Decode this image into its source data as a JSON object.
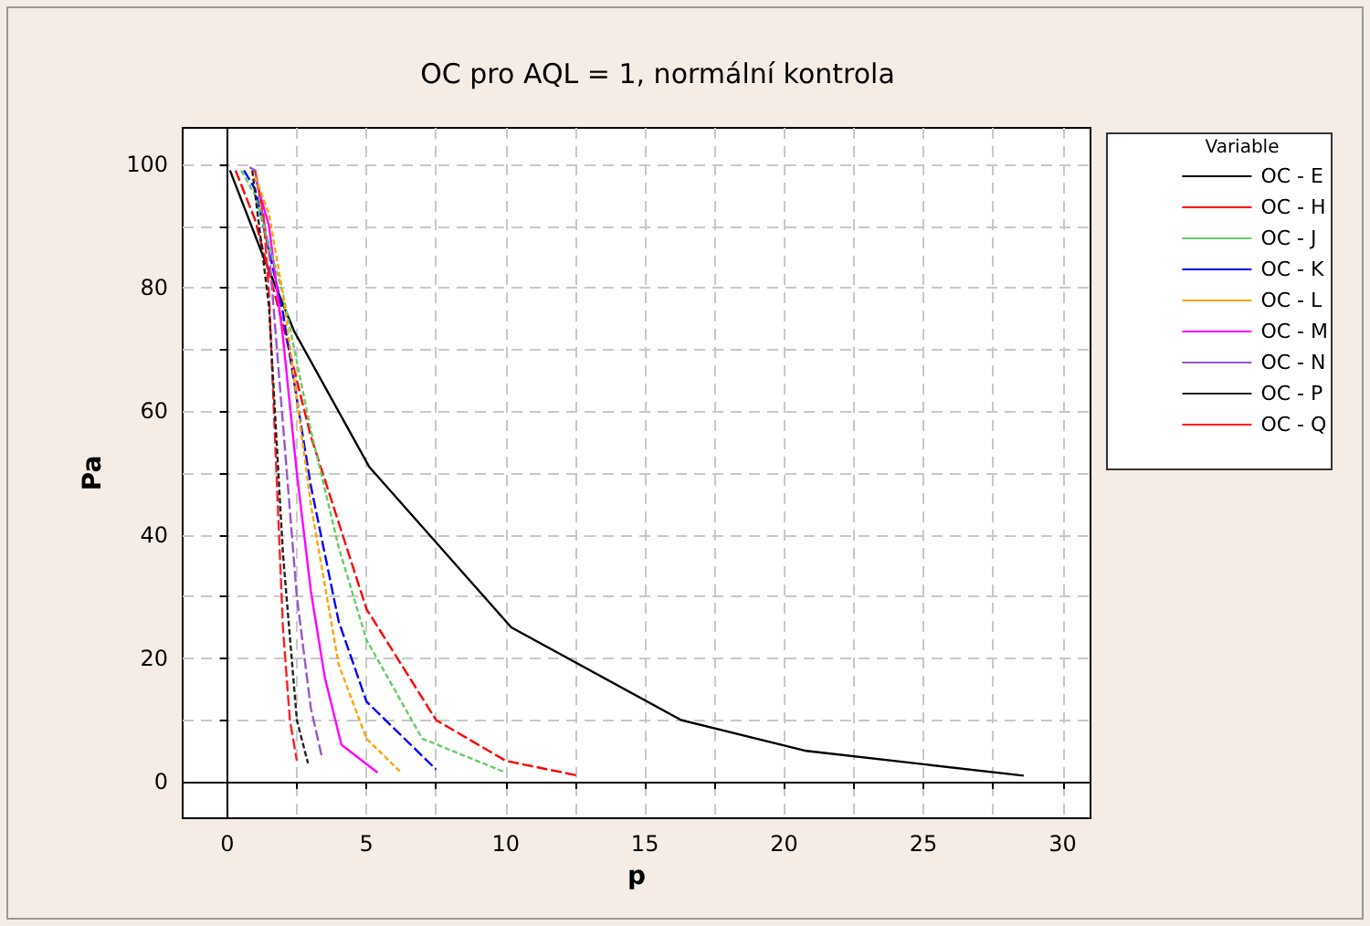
{
  "chart_data": {
    "type": "line",
    "title": "OC pro AQL = 1, normální kontrola",
    "xlabel": "p",
    "ylabel": "Pa",
    "legend_title": "Variable",
    "legend": "right",
    "grid": true,
    "marker": "none",
    "xlim": [
      -1.6,
      31
    ],
    "ylim": [
      -5.9,
      105.9
    ],
    "xticks": [
      0,
      {
        "value": 2.5,
        "label": null
      },
      5,
      {
        "value": 7.5,
        "label": null
      },
      10,
      {
        "value": 12.5,
        "label": null
      },
      15,
      {
        "value": 17.5,
        "label": null
      },
      20,
      {
        "value": 22.5,
        "label": null
      },
      25,
      {
        "value": 27.5,
        "label": null
      },
      30
    ],
    "yticks": [
      0,
      {
        "value": 10,
        "label": null
      },
      20,
      {
        "value": 30,
        "label": null
      },
      40,
      {
        "value": 50,
        "label": null
      },
      60,
      {
        "value": 70,
        "label": null
      },
      80,
      {
        "value": 90,
        "label": null
      },
      100
    ],
    "series": [
      {
        "name": "OC - E",
        "color": "#000000",
        "line_style": "solid",
        "x": [
          0.1,
          1.3,
          2.4,
          5.1,
          10.2,
          16.3,
          20.8,
          28.6
        ],
        "values": [
          99,
          85,
          73,
          51,
          25,
          10,
          5,
          1
        ]
      },
      {
        "name": "OC - H",
        "color": "#ff0000",
        "line_style": "dashed",
        "x": [
          0.3,
          1,
          2,
          3,
          5,
          7.5,
          10,
          12.6
        ],
        "values": [
          99,
          91,
          74,
          56,
          28,
          10,
          3.4,
          1
        ]
      },
      {
        "name": "OC - J",
        "color": "#66cc66",
        "line_style": "dotted",
        "x": [
          0.5,
          1,
          2,
          3,
          4,
          5,
          7,
          10
        ],
        "values": [
          99,
          95,
          79,
          57,
          38,
          23,
          7,
          1.5
        ]
      },
      {
        "name": "OC - K",
        "color": "#0000ff",
        "line_style": "dashed",
        "x": [
          0.6,
          1,
          2,
          3,
          4,
          5,
          7.5
        ],
        "values": [
          99,
          96,
          76,
          48,
          26,
          13,
          2
        ]
      },
      {
        "name": "OC - L",
        "color": "#ffa500",
        "line_style": "dotted",
        "x": [
          1,
          1.5,
          2,
          3,
          4,
          5,
          6.2
        ],
        "values": [
          98,
          92,
          79,
          45,
          19,
          7,
          1.7
        ]
      },
      {
        "name": "OC - M",
        "color": "#ff00ff",
        "line_style": "solid",
        "x": [
          1,
          1.5,
          2,
          2.5,
          3,
          3.5,
          4.1,
          5.4
        ],
        "values": [
          98,
          90,
          72,
          50,
          31,
          17,
          6,
          1.5
        ]
      },
      {
        "name": "OC - N",
        "color": "#9955cc",
        "line_style": "dashed",
        "x": [
          0.8,
          1,
          1.5,
          2,
          2.5,
          3,
          3.4
        ],
        "values": [
          99.5,
          99,
          86,
          58,
          30,
          12,
          4
        ]
      },
      {
        "name": "OC - P",
        "color": "#222222",
        "line_style": "dotted",
        "x": [
          0.9,
          1.5,
          2,
          2.5,
          2.9
        ],
        "values": [
          99,
          77,
          37,
          10,
          3
        ]
      },
      {
        "name": "OC - Q",
        "color": "#ff2020",
        "line_style": "dashed",
        "x": [
          1,
          1.3,
          1.5,
          1.75,
          2,
          2.25,
          2.5
        ],
        "values": [
          99,
          92,
          79,
          52,
          25,
          10,
          3.4
        ]
      }
    ]
  }
}
